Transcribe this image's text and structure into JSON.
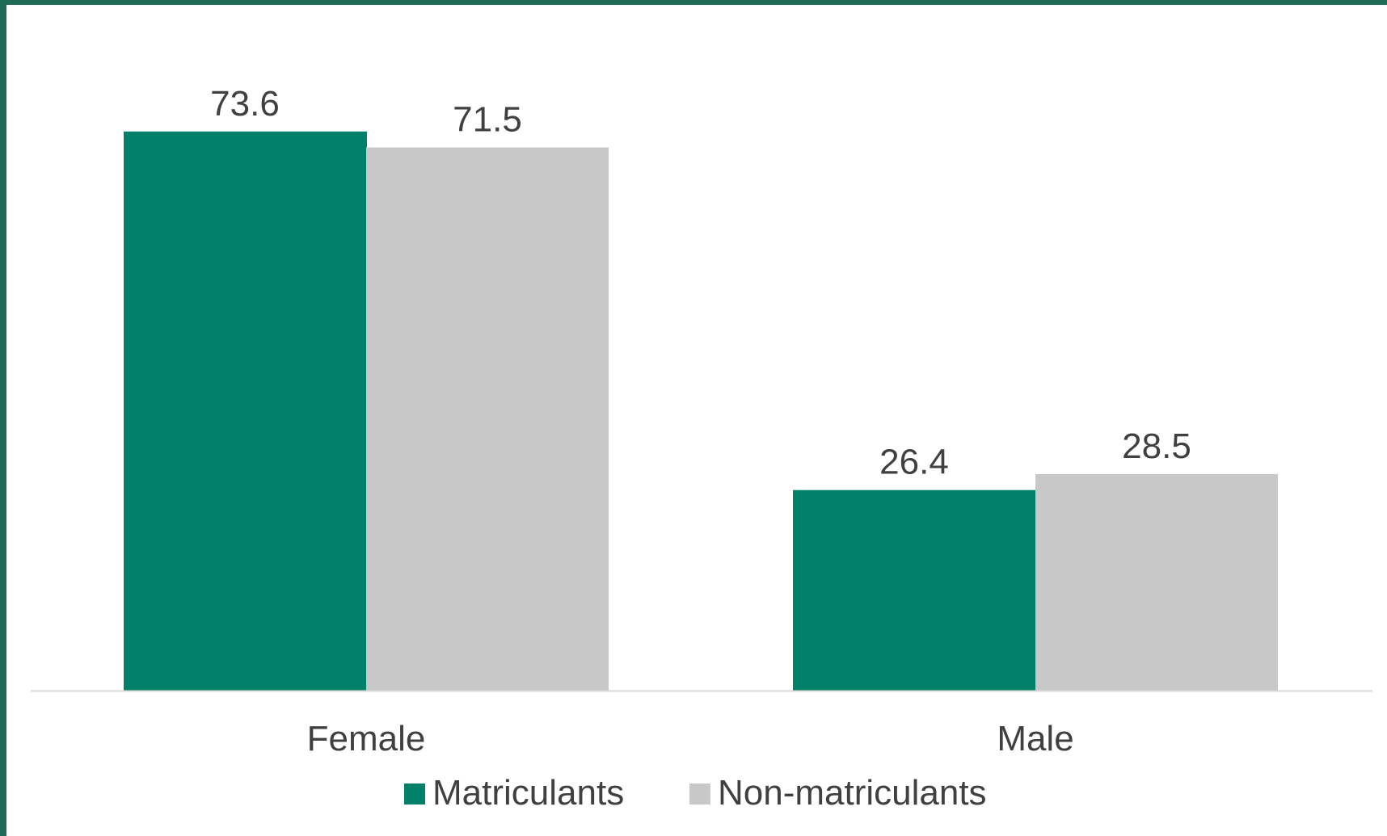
{
  "chart_data": {
    "type": "bar",
    "categories": [
      "Female",
      "Male"
    ],
    "series": [
      {
        "name": "Matriculants",
        "values": [
          73.6,
          26.4
        ],
        "color": "#008069"
      },
      {
        "name": "Non-matriculants",
        "values": [
          71.5,
          28.5
        ],
        "color": "#c8c8c8"
      }
    ],
    "data_labels": [
      [
        "73.6",
        "26.4"
      ],
      [
        "71.5",
        "28.5"
      ]
    ],
    "title": "",
    "xlabel": "",
    "ylabel": "",
    "ylim": [
      0,
      80
    ],
    "grid": false,
    "legend": "bottom-center",
    "baseline_color": "#d9d9d9",
    "text_color": "#404040"
  }
}
